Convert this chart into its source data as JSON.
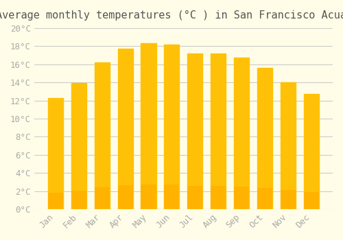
{
  "title": "Average monthly temperatures (°C ) in San Francisco Acuautla",
  "months": [
    "Jan",
    "Feb",
    "Mar",
    "Apr",
    "May",
    "Jun",
    "Jul",
    "Aug",
    "Sep",
    "Oct",
    "Nov",
    "Dec"
  ],
  "values": [
    12.3,
    13.9,
    16.2,
    17.7,
    18.3,
    18.2,
    17.2,
    17.2,
    16.7,
    15.6,
    14.0,
    12.7
  ],
  "bar_color_top": "#FFC107",
  "bar_color_bottom": "#FFB300",
  "background_color": "#FFFDE7",
  "grid_color": "#CCCCCC",
  "text_color": "#AAAAAA",
  "title_color": "#555555",
  "ylim": [
    0,
    20
  ],
  "ytick_step": 2,
  "title_fontsize": 11,
  "tick_fontsize": 9,
  "font_family": "monospace"
}
